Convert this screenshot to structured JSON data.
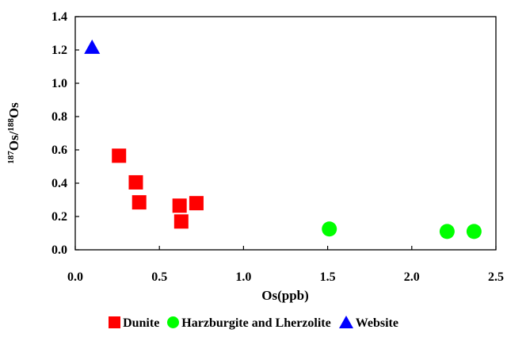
{
  "chart_data": {
    "type": "scatter",
    "xlabel": "Os(ppb)",
    "ylabel_sup1": "187",
    "ylabel_main1": "Os/",
    "ylabel_sup2": "188",
    "ylabel_main2": "Os",
    "xlim": [
      0,
      2.5
    ],
    "ylim": [
      0,
      1.4
    ],
    "x_ticks": [
      "0.0",
      "0.5",
      "1.0",
      "1.5",
      "2.0",
      "2.5"
    ],
    "y_ticks": [
      "0.0",
      "0.2",
      "0.4",
      "0.6",
      "0.8",
      "1.0",
      "1.2",
      "1.4"
    ],
    "grid": false,
    "legend_position": "bottom",
    "series": [
      {
        "name": "Dunite",
        "marker": "square",
        "color": "#ff0000",
        "points": [
          {
            "x": 0.26,
            "y": 0.565
          },
          {
            "x": 0.36,
            "y": 0.405
          },
          {
            "x": 0.38,
            "y": 0.285
          },
          {
            "x": 0.62,
            "y": 0.265
          },
          {
            "x": 0.63,
            "y": 0.17
          },
          {
            "x": 0.72,
            "y": 0.28
          }
        ]
      },
      {
        "name": "Harzburgite and Lherzolite",
        "marker": "circle",
        "color": "#00ff00",
        "points": [
          {
            "x": 1.51,
            "y": 0.125
          },
          {
            "x": 2.21,
            "y": 0.11
          },
          {
            "x": 2.37,
            "y": 0.11
          }
        ]
      },
      {
        "name": "Website",
        "marker": "triangle",
        "color": "#0000ff",
        "points": [
          {
            "x": 0.1,
            "y": 1.215
          }
        ]
      }
    ]
  }
}
